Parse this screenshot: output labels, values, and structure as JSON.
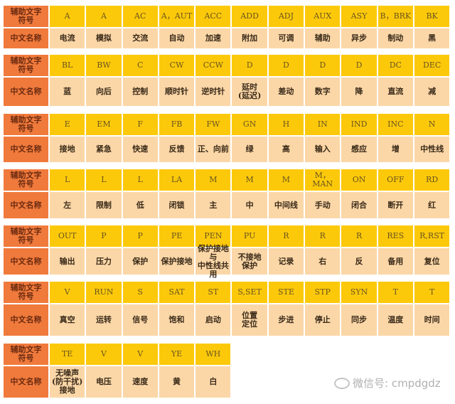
{
  "labels": {
    "symbol": "辅助文字\n符号",
    "name": "中文名称"
  },
  "blocks": [
    {
      "symbols": [
        "A",
        "A",
        "AC",
        "A，AUT",
        "ACC",
        "ADD",
        "ADJ",
        "AUX",
        "ASY",
        "B，BRK",
        "BK"
      ],
      "names": [
        "电流",
        "模拟",
        "交流",
        "自动",
        "加速",
        "附加",
        "可调",
        "辅助",
        "异步",
        "制动",
        "黑"
      ]
    },
    {
      "symbols": [
        "BL",
        "BW",
        "C",
        "CW",
        "CCW",
        "D",
        "D",
        "D",
        "D",
        "DC",
        "DEC"
      ],
      "names": [
        "蓝",
        "向后",
        "控制",
        "顺时针",
        "逆时针",
        "延时\n(延迟)",
        "差动",
        "数字",
        "降",
        "直流",
        "减"
      ]
    },
    {
      "symbols": [
        "E",
        "EM",
        "F",
        "FB",
        "FW",
        "GN",
        "H",
        "IN",
        "IND",
        "INC",
        "N"
      ],
      "names": [
        "接地",
        "紧急",
        "快速",
        "反馈",
        "正、向前",
        "绿",
        "高",
        "输入",
        "感应",
        "增",
        "中性线"
      ]
    },
    {
      "symbols": [
        "L",
        "L",
        "L",
        "LA",
        "M",
        "M",
        "M",
        "M，MAN",
        "ON",
        "OFF",
        "RD"
      ],
      "names": [
        "左",
        "限制",
        "低",
        "闭锁",
        "主",
        "中",
        "中间线",
        "手动",
        "闭合",
        "断开",
        "红"
      ]
    },
    {
      "symbols": [
        "OUT",
        "P",
        "P",
        "PE",
        "PEN",
        "PU",
        "R",
        "R",
        "R",
        "RES",
        "R,RST"
      ],
      "names": [
        "输出",
        "压力",
        "保护",
        "保护接地",
        "保护接地与\n中性线共用",
        "不接地\n保护",
        "记录",
        "右",
        "反",
        "备用",
        "复位"
      ]
    },
    {
      "symbols": [
        "V",
        "RUN",
        "S",
        "SAT",
        "ST",
        "S,SET",
        "STE",
        "STP",
        "SYN",
        "T",
        "T"
      ],
      "names": [
        "真空",
        "运转",
        "信号",
        "饱和",
        "启动",
        "位置\n定位",
        "步进",
        "停止",
        "同步",
        "温度",
        "时间"
      ]
    },
    {
      "symbols": [
        "TE",
        "V",
        "V",
        "YE",
        "WH"
      ],
      "names": [
        "无噪声\n(防干扰)\n接地",
        "电压",
        "速度",
        "黄",
        "白"
      ]
    }
  ],
  "watermark": "微信号: cmpdgdz",
  "colors": {
    "label": "#f07a3c",
    "symbol_row": "#fcc90a",
    "name_row": "#fbd7a8"
  }
}
